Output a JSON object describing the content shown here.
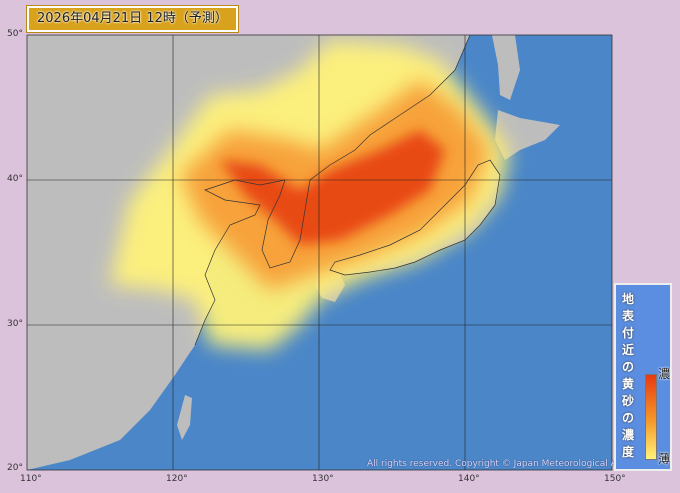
{
  "header": {
    "title": "2026年04月21日 12時（予測）"
  },
  "axes": {
    "lon_labels": [
      "110°",
      "120°",
      "130°",
      "140°",
      "150°"
    ],
    "lat_labels": [
      "50°",
      "40°",
      "30°",
      "20°"
    ]
  },
  "legend": {
    "title_chars": [
      "地",
      "表",
      "付",
      "近",
      "の",
      "黄",
      "砂",
      "の",
      "濃",
      "度"
    ],
    "high_label": "濃",
    "low_label": "薄"
  },
  "copyright": "All rights reserved. Copyright © Japan Meteorological Agency",
  "colors": {
    "sea": "#4a86c8",
    "land": "#bdbdbd",
    "dust_low": "#fff27a",
    "dust_mid": "#f7a23a",
    "dust_high": "#e63a10"
  }
}
